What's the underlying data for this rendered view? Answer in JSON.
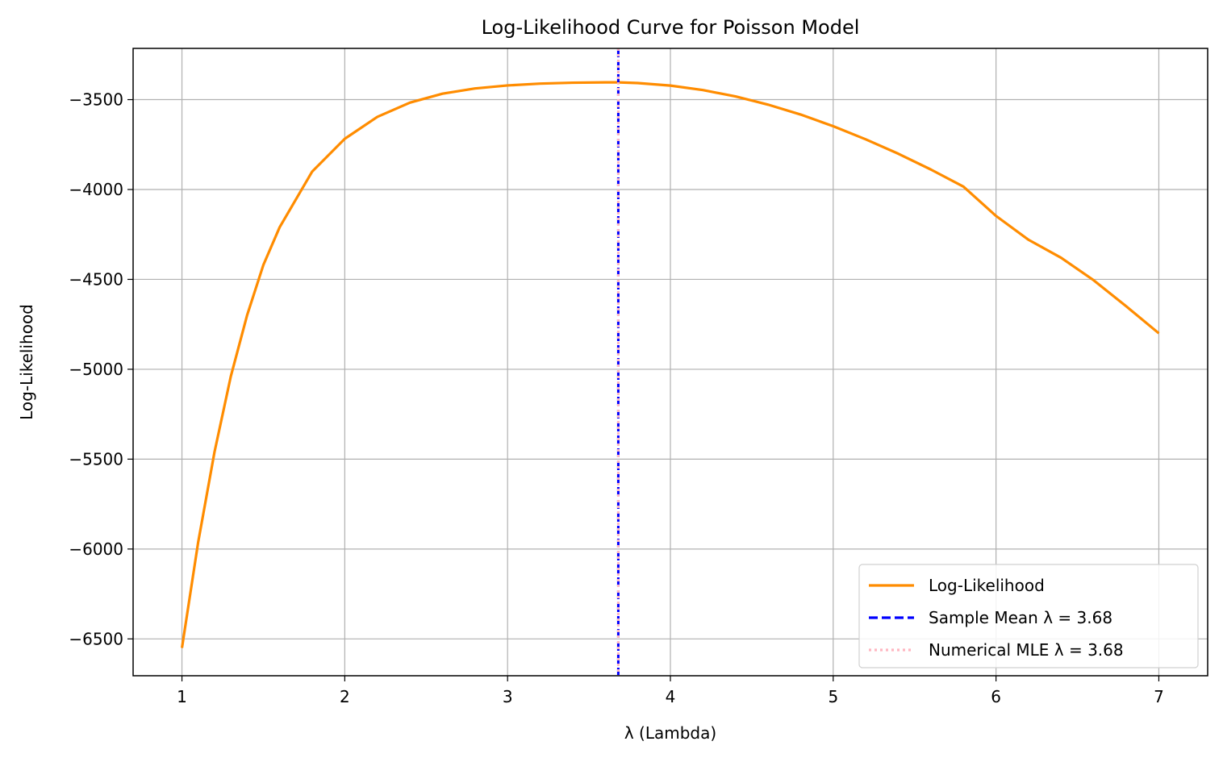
{
  "chart_data": {
    "type": "line",
    "title": "Log-Likelihood Curve for Poisson Model",
    "xlabel": "λ (Lambda)",
    "ylabel": "Log-Likelihood",
    "xlim": [
      0.7,
      7.3
    ],
    "ylim": [
      -6705,
      -3215
    ],
    "xticks": [
      1,
      2,
      3,
      4,
      5,
      6,
      7
    ],
    "yticks": [
      -6500,
      -6000,
      -5500,
      -5000,
      -4500,
      -4000,
      -3500
    ],
    "xtick_labels": [
      "1",
      "2",
      "3",
      "4",
      "5",
      "6",
      "7"
    ],
    "ytick_labels": [
      "−6500",
      "−6000",
      "−5500",
      "−5000",
      "−4500",
      "−4000",
      "−3500"
    ],
    "grid": true,
    "legend_position": "lower-right",
    "series": [
      {
        "name": "Log-Likelihood",
        "style": "solid",
        "color": "#ff8c00",
        "x": [
          1.0,
          1.1,
          1.2,
          1.3,
          1.4,
          1.5,
          1.6,
          1.8,
          2.0,
          2.2,
          2.4,
          2.6,
          2.8,
          3.0,
          3.2,
          3.4,
          3.6,
          3.68,
          3.8,
          4.0,
          4.2,
          4.4,
          4.6,
          4.8,
          5.0,
          5.2,
          5.4,
          5.6,
          5.8,
          6.0,
          6.2,
          6.4,
          6.6,
          6.8,
          7.0
        ],
        "y": [
          -6550,
          -5960,
          -5460,
          -5040,
          -4700,
          -4420,
          -4210,
          -3900,
          -3718,
          -3596,
          -3517,
          -3467,
          -3438,
          -3421,
          -3411,
          -3406,
          -3404,
          -3404,
          -3408,
          -3422,
          -3447,
          -3482,
          -3528,
          -3583,
          -3648,
          -3721,
          -3801,
          -3889,
          -3984,
          -4147,
          -4280,
          -4380,
          -4505,
          -4650,
          -4800
        ]
      },
      {
        "name": "Sample Mean λ = 3.68",
        "style": "dashed",
        "color": "#0000ff",
        "vline_x": 3.68
      },
      {
        "name": "Numerical MLE λ = 3.68",
        "style": "dotted",
        "color": "#ffb6c1",
        "vline_x": 3.68
      }
    ]
  }
}
